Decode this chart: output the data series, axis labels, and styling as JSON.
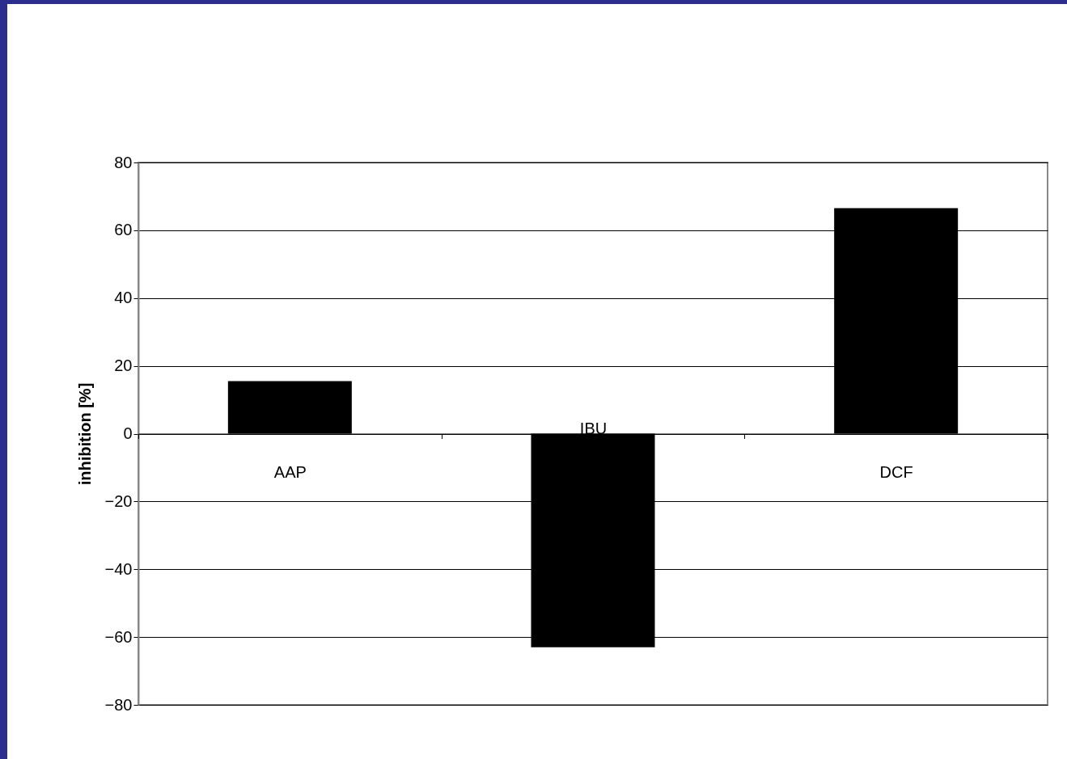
{
  "chart_data": {
    "type": "bar",
    "ylabel": "inhibition [%]",
    "categories": [
      "AAP",
      "IBU",
      "DCF"
    ],
    "values": [
      15.5,
      -63,
      66.5
    ],
    "color": "#000000",
    "ylim": [
      -80,
      80
    ],
    "yticks": [
      -80,
      -60,
      -40,
      -20,
      0,
      20,
      40,
      60,
      80
    ],
    "grid": "y"
  }
}
